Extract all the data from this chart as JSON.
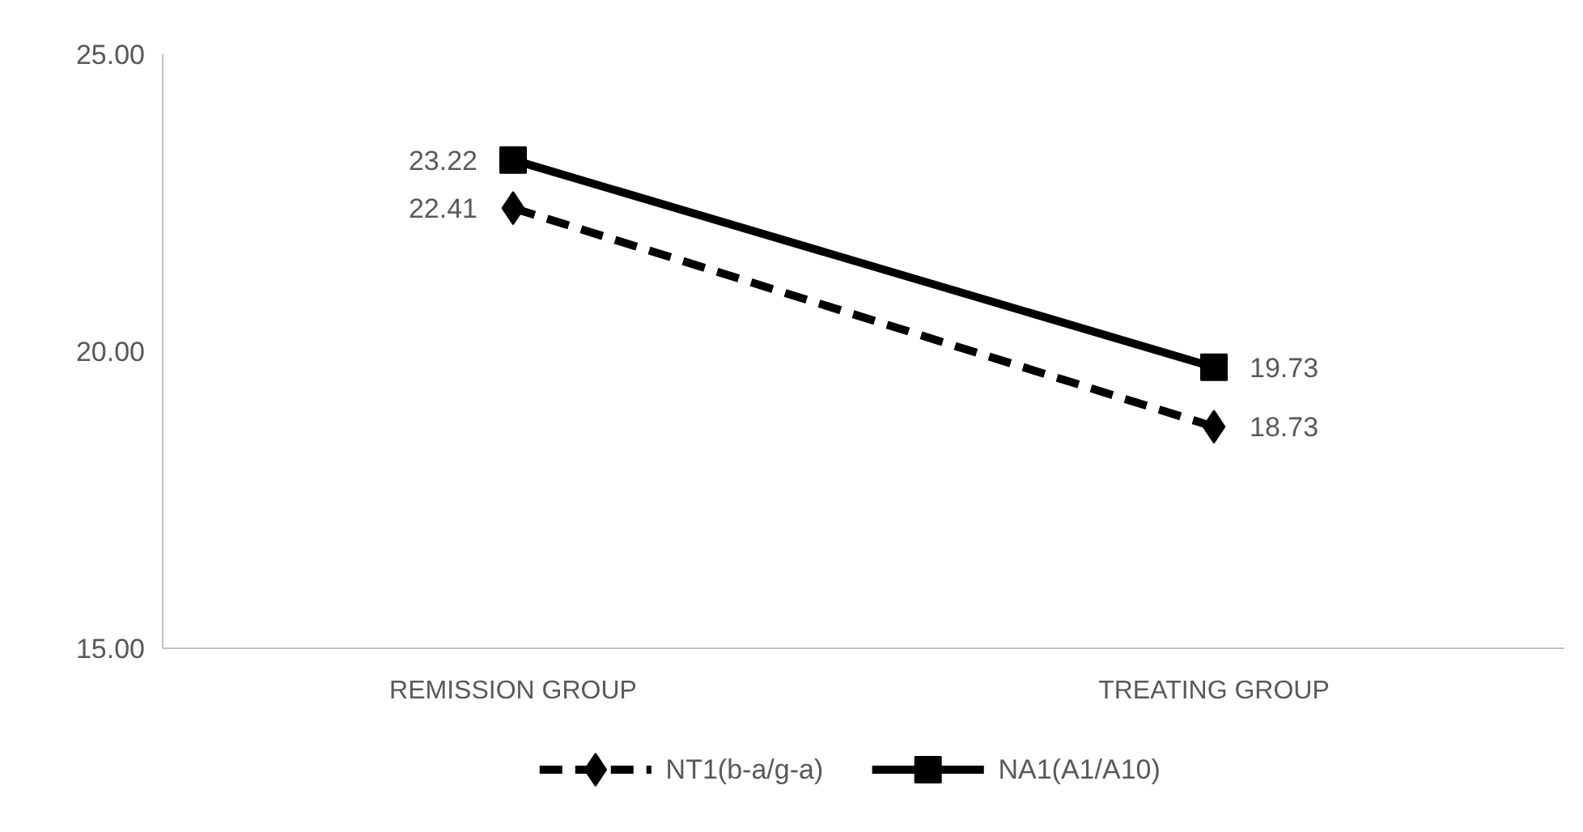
{
  "chart_data": {
    "type": "line",
    "categories": [
      "REMISSION GROUP",
      "TREATING GROUP"
    ],
    "series": [
      {
        "name": "NT1(b-a/g-a)",
        "color": "#000000",
        "values": [
          22.41,
          18.73
        ],
        "marker": "diamond",
        "line_style": "dashed"
      },
      {
        "name": "NA1(A1/A10)",
        "color": "#000000",
        "values": [
          23.22,
          19.73
        ],
        "marker": "square",
        "line_style": "solid"
      }
    ],
    "ylim": [
      15,
      25
    ],
    "yticks": [
      {
        "value": 15,
        "label": "15.00"
      },
      {
        "value": 20,
        "label": "20.00"
      },
      {
        "value": 25,
        "label": "25.00"
      }
    ],
    "data_labels": true,
    "legend": "bottom"
  }
}
